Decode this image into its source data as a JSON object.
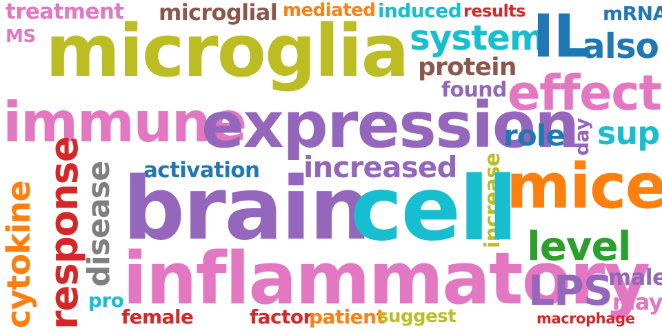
{
  "colors": {
    "pink": "#e377c2",
    "brown": "#8c564b",
    "orange": "#ff7f0e",
    "cyan": "#17becf",
    "red": "#d62728",
    "blue": "#1f77b4",
    "olive": "#bcbd22",
    "purple": "#9467bd",
    "gray": "#7f7f7f",
    "green": "#2ca02c"
  },
  "words": {
    "treatment": "treatment",
    "ms": "MS",
    "microglial": "microglial",
    "mediated": "mediated",
    "induced": "induced",
    "results": "results",
    "mrna": "mRNA",
    "microglia": "microglia",
    "system": "system",
    "il": "IL",
    "also": "also",
    "protein": "protein",
    "found": "found",
    "effect": "effect",
    "immune": "immune",
    "expression": "expression",
    "role": "role",
    "day": "day",
    "sup": "sup",
    "activation": "activation",
    "increased": "increased",
    "response": "response",
    "disease": "disease",
    "increase": "increase",
    "mice": "mice",
    "cytokine": "cytokine",
    "brain": "brain",
    "cell": "cell",
    "level": "level",
    "inflammatory": "inflammatory",
    "lps": "LPS",
    "male": "male",
    "pro": "pro",
    "may": "may",
    "female": "female",
    "factor": "factor",
    "patient": "patient",
    "suggest": "suggest",
    "macrophage": "macrophage"
  }
}
